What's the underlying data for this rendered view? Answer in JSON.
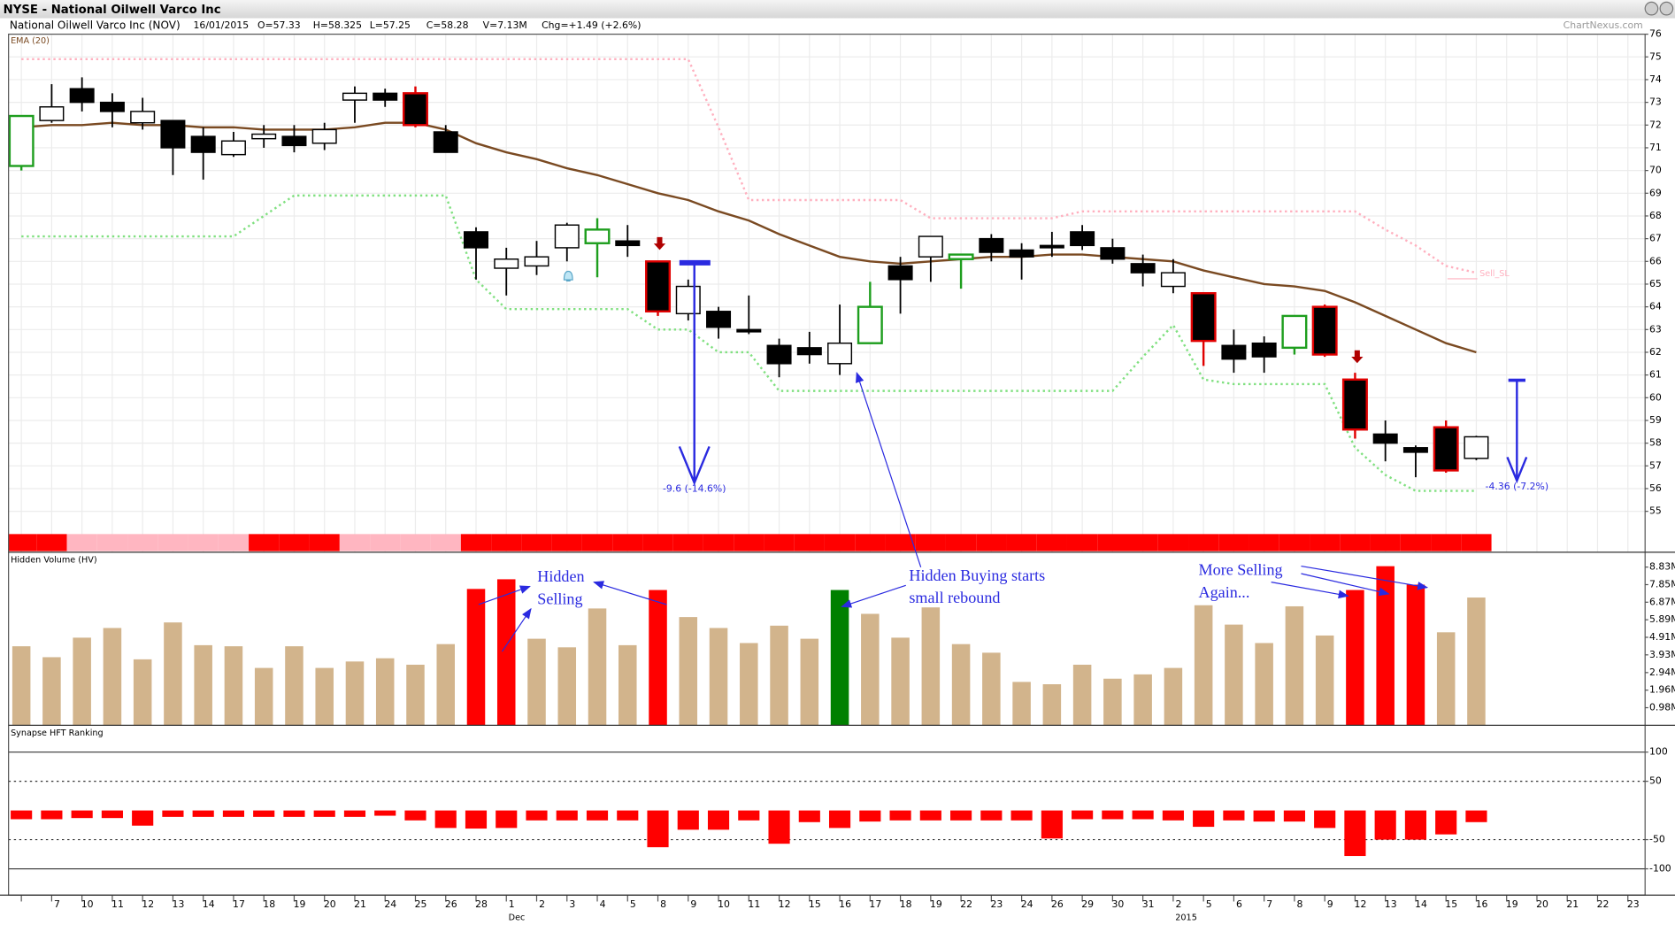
{
  "header": {
    "title": "NYSE - National Oilwell Varco Inc",
    "name": "National Oilwell Varco Inc (NOV)",
    "date": "16/01/2015",
    "open": "O=57.33",
    "high": "H=58.325",
    "low": "L=57.25",
    "close": "C=58.28",
    "volume": "V=7.13M",
    "change": "Chg=+1.49 (+2.6%)",
    "source": "ChartNexus.com"
  },
  "x_axis": {
    "categories": [
      null,
      "7",
      "10",
      "11",
      "12",
      "13",
      "14",
      "17",
      "18",
      "19",
      "20",
      "21",
      "24",
      "25",
      "26",
      "28",
      "1",
      "2",
      "3",
      "4",
      "5",
      "8",
      "9",
      "10",
      "11",
      "12",
      "15",
      "16",
      "17",
      "18",
      "19",
      "22",
      "23",
      "24",
      "26",
      "29",
      "30",
      "31",
      "2",
      "5",
      "6",
      "7",
      "8",
      "9",
      "12",
      "13",
      "14",
      "15",
      "16",
      "19",
      "20",
      "21",
      "22",
      "23"
    ],
    "groups": [
      null,
      null,
      null,
      null,
      null,
      null,
      null,
      null,
      null,
      null,
      null,
      null,
      null,
      null,
      null,
      null,
      "Dec",
      null,
      null,
      null,
      null,
      null,
      null,
      null,
      null,
      null,
      null,
      null,
      null,
      null,
      null,
      null,
      null,
      null,
      null,
      null,
      null,
      null,
      "2015",
      null,
      null,
      null,
      null,
      null,
      null,
      null,
      null,
      null,
      null,
      null,
      null,
      null,
      null,
      null
    ]
  },
  "chart_data": [
    {
      "type": "candlestick",
      "open": [
        70.2,
        72.2,
        73.6,
        73.0,
        72.1,
        72.2,
        71.5,
        70.7,
        71.4,
        71.5,
        71.2,
        73.1,
        73.4,
        73.4,
        71.7,
        67.3,
        65.7,
        65.8,
        66.6,
        66.8,
        66.9,
        66.0,
        63.7,
        63.8,
        63.0,
        62.3,
        62.2,
        61.5,
        62.4,
        65.8,
        66.2,
        66.1,
        67.0,
        66.5,
        66.7,
        67.3,
        66.6,
        65.9,
        64.9,
        64.6,
        62.3,
        62.4,
        62.2,
        64.0,
        60.8,
        58.4,
        57.8,
        58.7,
        57.33
      ],
      "high": [
        72.4,
        73.8,
        74.1,
        73.4,
        73.2,
        72.2,
        71.9,
        71.7,
        72.0,
        72.0,
        72.1,
        73.7,
        73.6,
        73.7,
        72.0,
        67.5,
        66.6,
        66.9,
        67.7,
        67.9,
        67.6,
        66.0,
        65.2,
        64.0,
        64.5,
        62.6,
        62.9,
        64.1,
        65.1,
        66.2,
        67.1,
        66.3,
        67.2,
        66.8,
        67.3,
        67.6,
        67.0,
        66.3,
        66.1,
        64.6,
        63.0,
        62.7,
        63.6,
        64.1,
        61.1,
        59.0,
        57.9,
        59.0,
        58.325
      ],
      "low": [
        70.0,
        72.1,
        72.6,
        71.9,
        71.8,
        69.8,
        69.6,
        70.6,
        71.0,
        70.8,
        70.9,
        72.1,
        72.8,
        71.9,
        70.8,
        65.2,
        64.5,
        65.4,
        66.0,
        65.3,
        66.2,
        63.6,
        63.4,
        62.6,
        62.8,
        60.9,
        61.5,
        61.0,
        62.4,
        63.7,
        65.1,
        64.8,
        66.0,
        65.2,
        66.2,
        66.5,
        65.9,
        64.9,
        64.6,
        61.4,
        61.1,
        61.1,
        61.9,
        61.8,
        58.2,
        57.2,
        56.5,
        56.7,
        57.25
      ],
      "close": [
        72.4,
        72.8,
        73.0,
        72.6,
        72.6,
        71.0,
        70.8,
        71.3,
        71.6,
        71.1,
        71.8,
        73.4,
        73.1,
        72.0,
        70.8,
        66.6,
        66.1,
        66.2,
        67.6,
        67.4,
        66.7,
        63.8,
        64.9,
        63.1,
        62.9,
        61.5,
        61.9,
        62.4,
        64.0,
        65.2,
        67.1,
        66.3,
        66.4,
        66.2,
        66.6,
        66.7,
        66.1,
        65.5,
        65.5,
        62.5,
        61.7,
        61.8,
        63.6,
        61.9,
        58.6,
        58.0,
        57.6,
        56.8,
        58.28
      ],
      "up_color": "#ffffff",
      "down_color": "#000000",
      "edge_color": "#000000",
      "edge_colors": [
        "#1e9e1e",
        null,
        null,
        null,
        null,
        null,
        null,
        null,
        null,
        null,
        null,
        null,
        null,
        "#e00000",
        null,
        null,
        null,
        null,
        null,
        "#1e9e1e",
        null,
        "#e00000",
        null,
        null,
        null,
        null,
        null,
        null,
        "#1e9e1e",
        null,
        null,
        "#1e9e1e",
        null,
        null,
        null,
        null,
        null,
        null,
        null,
        "#e00000",
        null,
        null,
        "#1e9e1e",
        "#e00000",
        "#e00000",
        null,
        null,
        "#e00000",
        null
      ],
      "lines": [
        {
          "name": "EMA (20)",
          "color": "#7a4a22",
          "style": "solid",
          "values": [
            71.9,
            72.0,
            72.0,
            72.1,
            72.0,
            72.0,
            71.9,
            71.9,
            71.8,
            71.8,
            71.8,
            71.9,
            72.1,
            72.1,
            71.8,
            71.2,
            70.8,
            70.5,
            70.1,
            69.8,
            69.4,
            69.0,
            68.7,
            68.2,
            67.8,
            67.2,
            66.7,
            66.2,
            66.0,
            65.9,
            66.0,
            66.1,
            66.2,
            66.2,
            66.3,
            66.3,
            66.2,
            66.1,
            66.0,
            65.6,
            65.3,
            65.0,
            64.9,
            64.7,
            64.2,
            63.6,
            63.0,
            62.4,
            62.0
          ]
        },
        {
          "color": "#ffb0bf",
          "style": "dotted",
          "values": [
            74.9,
            74.9,
            74.9,
            74.9,
            74.9,
            74.9,
            74.9,
            74.9,
            74.9,
            74.9,
            74.9,
            74.9,
            74.9,
            74.9,
            74.9,
            74.9,
            74.9,
            74.9,
            74.9,
            74.9,
            74.9,
            74.9,
            74.9,
            71.9,
            68.7,
            68.7,
            68.7,
            68.7,
            68.7,
            68.7,
            67.9,
            67.9,
            67.9,
            67.9,
            67.9,
            68.2,
            68.2,
            68.2,
            68.2,
            68.2,
            68.2,
            68.2,
            68.2,
            68.2,
            68.2,
            67.4,
            66.7,
            65.8,
            65.5
          ]
        },
        {
          "color": "#80e080",
          "style": "dotted",
          "values": [
            67.1,
            67.1,
            67.1,
            67.1,
            67.1,
            67.1,
            67.1,
            67.1,
            68.0,
            68.9,
            68.9,
            68.9,
            68.9,
            68.9,
            68.9,
            65.2,
            63.9,
            63.9,
            63.9,
            63.9,
            63.9,
            63.0,
            63.0,
            62.0,
            62.0,
            60.3,
            60.3,
            60.3,
            60.3,
            60.3,
            60.3,
            60.3,
            60.3,
            60.3,
            60.3,
            60.3,
            60.3,
            61.8,
            63.2,
            60.8,
            60.6,
            60.6,
            60.6,
            60.6,
            57.8,
            56.6,
            55.9,
            55.9,
            55.9
          ]
        }
      ],
      "ribbon_colors": [
        "#ff0000",
        "#ff0000",
        "#ffb6c1",
        "#ffb6c1",
        "#ffb6c1",
        "#ffb6c1",
        "#ffb6c1",
        "#ffb6c1",
        "#ff0000",
        "#ff0000",
        "#ff0000",
        "#ffb6c1",
        "#ffb6c1",
        "#ffb6c1",
        "#ffb6c1",
        "#ff0000",
        "#ff0000",
        "#ff0000",
        "#ff0000",
        "#ff0000",
        "#ff0000",
        "#ff0000",
        "#ff0000",
        "#ff0000",
        "#ff0000",
        "#ff0000",
        "#ff0000",
        "#ff0000",
        "#ff0000",
        "#ff0000",
        "#ff0000",
        "#ff0000",
        "#ff0000",
        "#ff0000",
        "#ff0000",
        "#ff0000",
        "#ff0000",
        "#ff0000",
        "#ff0000",
        "#ff0000",
        "#ff0000",
        "#ff0000",
        "#ff0000",
        "#ff0000",
        "#ff0000",
        "#ff0000",
        "#ff0000",
        "#ff0000",
        "#ff0000"
      ],
      "ylim": [
        53.2,
        76
      ],
      "yticks": [
        55,
        56,
        57,
        58,
        59,
        60,
        61,
        62,
        63,
        64,
        65,
        66,
        67,
        68,
        69,
        70,
        71,
        72,
        73,
        74,
        75,
        76
      ],
      "grid": true
    },
    {
      "type": "bar",
      "title": "Hidden Volume (HV)",
      "values": [
        4.41,
        3.8,
        4.89,
        5.43,
        3.68,
        5.74,
        4.47,
        4.41,
        3.2,
        4.41,
        3.2,
        3.56,
        3.74,
        3.38,
        4.53,
        7.61,
        8.15,
        4.83,
        4.35,
        6.52,
        4.47,
        7.55,
        6.04,
        5.43,
        4.59,
        5.56,
        4.83,
        7.55,
        6.22,
        4.89,
        6.58,
        4.53,
        4.05,
        2.42,
        2.29,
        3.38,
        2.6,
        2.84,
        3.2,
        6.7,
        5.62,
        4.59,
        6.64,
        5.01,
        7.55,
        8.88,
        7.85,
        5.19,
        7.13
      ],
      "colors": [
        "#d2b48c",
        "#d2b48c",
        "#d2b48c",
        "#d2b48c",
        "#d2b48c",
        "#d2b48c",
        "#d2b48c",
        "#d2b48c",
        "#d2b48c",
        "#d2b48c",
        "#d2b48c",
        "#d2b48c",
        "#d2b48c",
        "#d2b48c",
        "#d2b48c",
        "#ff0000",
        "#ff0000",
        "#d2b48c",
        "#d2b48c",
        "#d2b48c",
        "#d2b48c",
        "#ff0000",
        "#d2b48c",
        "#d2b48c",
        "#d2b48c",
        "#d2b48c",
        "#d2b48c",
        "#008000",
        "#d2b48c",
        "#d2b48c",
        "#d2b48c",
        "#d2b48c",
        "#d2b48c",
        "#d2b48c",
        "#d2b48c",
        "#d2b48c",
        "#d2b48c",
        "#d2b48c",
        "#d2b48c",
        "#d2b48c",
        "#d2b48c",
        "#d2b48c",
        "#d2b48c",
        "#d2b48c",
        "#ff0000",
        "#ff0000",
        "#ff0000",
        "#d2b48c",
        "#d2b48c"
      ],
      "ylim": [
        0,
        9.66
      ],
      "yticks": [
        {
          "value": 0.98,
          "label": "0.98M"
        },
        {
          "value": 1.96,
          "label": "1.96M"
        },
        {
          "value": 2.94,
          "label": "2.94M"
        },
        {
          "value": 3.93,
          "label": "3.93M"
        },
        {
          "value": 4.91,
          "label": "4.91M"
        },
        {
          "value": 5.89,
          "label": "5.89M"
        },
        {
          "value": 6.87,
          "label": "6.87M"
        },
        {
          "value": 7.85,
          "label": "7.85M"
        },
        {
          "value": 8.83,
          "label": "8.83M"
        }
      ]
    },
    {
      "type": "bar",
      "title": "Synapse HFT Ranking",
      "values": [
        -15,
        -15,
        -13,
        -13,
        -26,
        -11,
        -11,
        -11,
        -11,
        -11,
        -11,
        -11,
        -9,
        -17,
        -30,
        -31,
        -30,
        -17,
        -17,
        -17,
        -17,
        -63,
        -33,
        -33,
        -17,
        -57,
        -20,
        -30,
        -19,
        -17,
        -17,
        -17,
        -17,
        -17,
        -48,
        -15,
        -15,
        -15,
        -17,
        -28,
        -17,
        -19,
        -19,
        -30,
        -78,
        -50,
        -50,
        -41,
        -20
      ],
      "color": "#ff0000",
      "ylim": [
        -145,
        146
      ],
      "yticks": [
        100,
        50,
        -50,
        -100
      ],
      "grid_styles": [
        "solid",
        "dashed",
        "dashed",
        "solid"
      ]
    }
  ],
  "annotations": [
    {
      "lines": [
        "Hidden",
        "Selling"
      ]
    },
    {
      "lines": [
        "Hidden Buying starts",
        "small rebound"
      ]
    },
    {
      "lines": [
        "More Selling",
        "Again..."
      ]
    },
    {
      "text": "-9.6 (-14.6%)"
    },
    {
      "text": "-4.36 (-7.2%)"
    },
    {
      "text": "Sell_SL"
    }
  ]
}
